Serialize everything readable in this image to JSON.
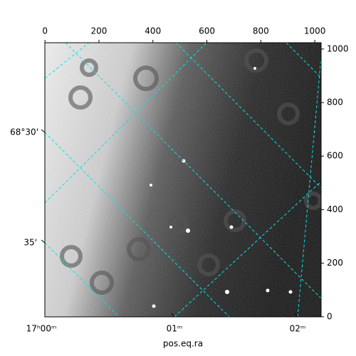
{
  "chart_data": {
    "type": "image",
    "xlabel": "pos.eq.ra",
    "xlim": [
      -0.5,
      1023.5
    ],
    "xticks": [
      0,
      200,
      400,
      600,
      800,
      1000
    ],
    "ylim": [
      -0.5,
      1023.5
    ],
    "yticks": [
      0,
      200,
      400,
      600,
      800,
      1000
    ],
    "ra_tick_labels": [
      "17ʰ00ᵐ",
      "01ᵐ",
      "02ᵐ"
    ],
    "dec_tick_labels": [
      "68°30'",
      "35'"
    ],
    "grid": true,
    "grid_color": "#00e5e5"
  }
}
